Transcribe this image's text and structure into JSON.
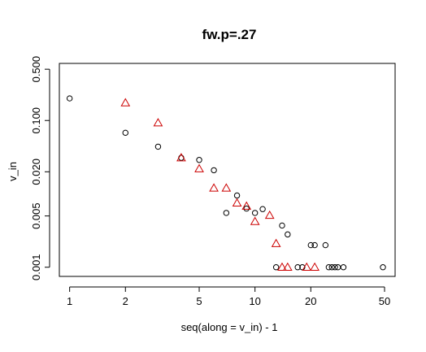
{
  "chart_data": {
    "type": "scatter",
    "title": "fw.p=.27",
    "xlabel": "seq(along = v_in) - 1",
    "ylabel": "v_in",
    "x_scale": "log",
    "y_scale": "log",
    "xlim": [
      0.88,
      57
    ],
    "ylim": [
      0.00075,
      0.6
    ],
    "x_ticks": [
      1,
      2,
      5,
      10,
      20,
      50
    ],
    "x_tick_labels": [
      "1",
      "2",
      "5",
      "10",
      "20",
      "50"
    ],
    "y_ticks": [
      0.001,
      0.005,
      0.02,
      0.1,
      0.5
    ],
    "y_tick_labels": [
      "0.001",
      "0.005",
      "0.020",
      "0.100",
      "0.500"
    ],
    "grid": false,
    "legend": "none",
    "series": [
      {
        "marker": "circle",
        "color": "#000000",
        "points": [
          [
            1,
            0.2
          ],
          [
            2,
            0.068
          ],
          [
            3,
            0.044
          ],
          [
            4,
            0.031
          ],
          [
            5,
            0.029
          ],
          [
            6,
            0.021
          ],
          [
            7,
            0.0055
          ],
          [
            8,
            0.0095
          ],
          [
            9,
            0.0063
          ],
          [
            10,
            0.0055
          ],
          [
            11,
            0.0062
          ],
          [
            13,
            0.001
          ],
          [
            14,
            0.0037
          ],
          [
            15,
            0.0028
          ],
          [
            17,
            0.001
          ],
          [
            18,
            0.001
          ],
          [
            20,
            0.002
          ],
          [
            21,
            0.002
          ],
          [
            24,
            0.002
          ],
          [
            25,
            0.001
          ],
          [
            26,
            0.001
          ],
          [
            27,
            0.001
          ],
          [
            28,
            0.001
          ],
          [
            30,
            0.001
          ],
          [
            49,
            0.001
          ]
        ]
      },
      {
        "marker": "triangle",
        "color": "#cc0000",
        "points": [
          [
            2,
            0.174
          ],
          [
            3,
            0.093
          ],
          [
            4,
            0.031
          ],
          [
            5,
            0.022
          ],
          [
            6,
            0.012
          ],
          [
            7,
            0.012
          ],
          [
            8,
            0.0075
          ],
          [
            9,
            0.0068
          ],
          [
            10,
            0.0042
          ],
          [
            12,
            0.0051
          ],
          [
            13,
            0.0021
          ],
          [
            14,
            0.001
          ],
          [
            15,
            0.001
          ],
          [
            19,
            0.001
          ],
          [
            21,
            0.001
          ]
        ]
      }
    ]
  }
}
